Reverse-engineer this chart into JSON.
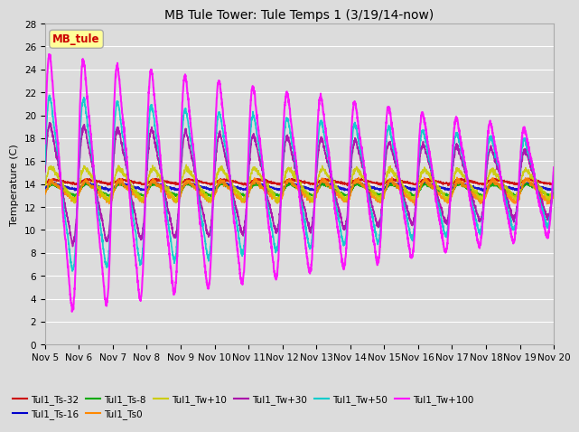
{
  "title": "MB Tule Tower: Tule Temps 1 (3/19/14-now)",
  "ylabel": "Temperature (C)",
  "xlim": [
    0,
    15
  ],
  "ylim": [
    0,
    28
  ],
  "yticks": [
    0,
    2,
    4,
    6,
    8,
    10,
    12,
    14,
    16,
    18,
    20,
    22,
    24,
    26,
    28
  ],
  "xtick_labels": [
    "Nov 5",
    "Nov 6",
    "Nov 7",
    "Nov 8",
    "Nov 9",
    "Nov 10",
    "Nov 11",
    "Nov 12",
    "Nov 13",
    "Nov 14",
    "Nov 15",
    "Nov 16",
    "Nov 17",
    "Nov 18",
    "Nov 19",
    "Nov 20"
  ],
  "xtick_positions": [
    0,
    1,
    2,
    3,
    4,
    5,
    6,
    7,
    8,
    9,
    10,
    11,
    12,
    13,
    14,
    15
  ],
  "background_color": "#dcdcdc",
  "plot_bg_color": "#dcdcdc",
  "grid_color": "#ffffff",
  "series_order": [
    "Tul1_Ts-32",
    "Tul1_Ts-16",
    "Tul1_Ts-8",
    "Tul1_Ts0",
    "Tul1_Tw+10",
    "Tul1_Tw+30",
    "Tul1_Tw+50",
    "Tul1_Tw+100"
  ],
  "series": {
    "Tul1_Ts-32": {
      "color": "#cc0000",
      "lw": 1.0,
      "base": 14.2,
      "amp_start": 0.25,
      "amp_end": 0.25
    },
    "Tul1_Ts-16": {
      "color": "#0000cc",
      "lw": 1.0,
      "base": 13.8,
      "amp_start": 0.35,
      "amp_end": 0.35
    },
    "Tul1_Ts-8": {
      "color": "#00aa00",
      "lw": 1.0,
      "base": 13.5,
      "amp_start": 0.6,
      "amp_end": 0.6
    },
    "Tul1_Ts0": {
      "color": "#ff8800",
      "lw": 1.0,
      "base": 13.4,
      "amp_start": 1.0,
      "amp_end": 1.2
    },
    "Tul1_Tw+10": {
      "color": "#cccc00",
      "lw": 1.0,
      "base": 14.0,
      "amp_start": 1.8,
      "amp_end": 1.5
    },
    "Tul1_Tw+30": {
      "color": "#aa00aa",
      "lw": 1.2,
      "base": 14.0,
      "amp_start": 6.5,
      "amp_end": 3.5
    },
    "Tul1_Tw+50": {
      "color": "#00cccc",
      "lw": 1.2,
      "base": 14.0,
      "amp_start": 9.5,
      "amp_end": 4.5
    },
    "Tul1_Tw+100": {
      "color": "#ff00ff",
      "lw": 1.5,
      "base": 14.0,
      "amp_start": 14.0,
      "amp_end": 5.5
    }
  },
  "legend_label": "MB_tule",
  "legend_color": "#cc0000",
  "legend_bg": "#ffff99",
  "title_fontsize": 10,
  "axis_fontsize": 8,
  "tick_fontsize": 7.5
}
